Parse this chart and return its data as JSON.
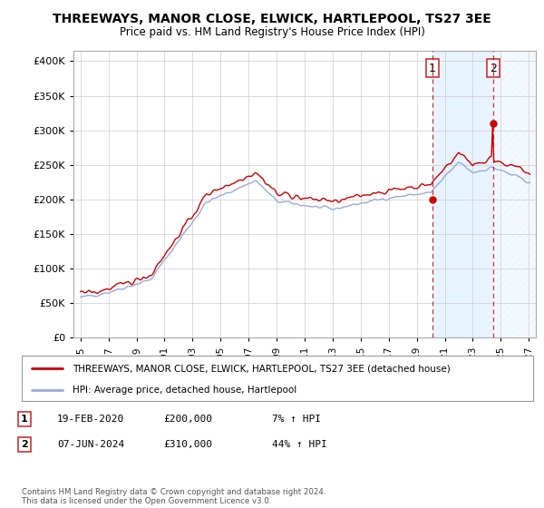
{
  "title": "THREEWAYS, MANOR CLOSE, ELWICK, HARTLEPOOL, TS27 3EE",
  "subtitle": "Price paid vs. HM Land Registry's House Price Index (HPI)",
  "legend_line1": "THREEWAYS, MANOR CLOSE, ELWICK, HARTLEPOOL, TS27 3EE (detached house)",
  "legend_line2": "HPI: Average price, detached house, Hartlepool",
  "sale1_date": "19-FEB-2020",
  "sale1_price": "£200,000",
  "sale1_hpi": "7% ↑ HPI",
  "sale2_date": "07-JUN-2024",
  "sale2_price": "£310,000",
  "sale2_hpi": "44% ↑ HPI",
  "footer": "Contains HM Land Registry data © Crown copyright and database right 2024.\nThis data is licensed under the Open Government Licence v3.0.",
  "ylim": [
    0,
    400000
  ],
  "yticks": [
    0,
    50000,
    100000,
    150000,
    200000,
    250000,
    300000,
    350000,
    400000
  ],
  "background_color": "#ffffff",
  "grid_color": "#cccccc",
  "hpi_line_color": "#99aadd",
  "price_line_color": "#cc0000",
  "sale1_x": 2020.12,
  "sale2_x": 2024.44,
  "shade_color": "#ddeeff",
  "hatch_color": "#ccddee"
}
